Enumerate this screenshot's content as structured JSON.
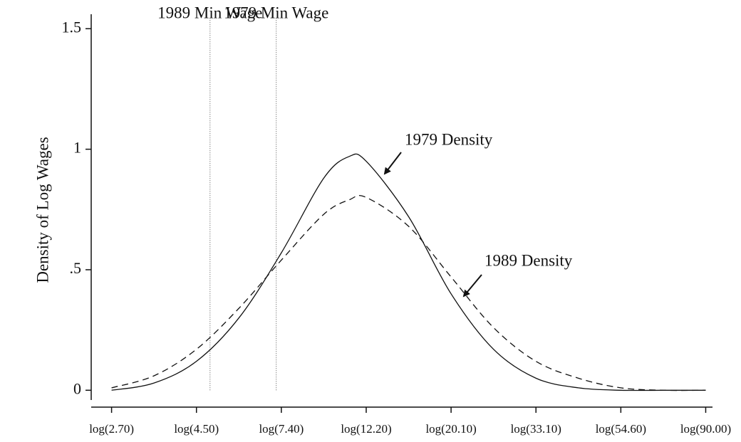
{
  "chart_data": {
    "type": "line",
    "y_label": "Density of Log Wages",
    "x": [
      1.0,
      1.25,
      1.5,
      1.75,
      2.0,
      2.25,
      2.4,
      2.5,
      2.75,
      3.0,
      3.25,
      3.5,
      3.75,
      4.0,
      4.25,
      4.5
    ],
    "series": [
      {
        "name": "1979 Density",
        "color": "#111111",
        "dash": "solid",
        "values": [
          0.0,
          0.03,
          0.12,
          0.3,
          0.57,
          0.88,
          0.97,
          0.95,
          0.72,
          0.4,
          0.17,
          0.05,
          0.01,
          0.0,
          0.0,
          0.0
        ]
      },
      {
        "name": "1989 Density",
        "color": "#111111",
        "dash": "dashed",
        "values": [
          0.01,
          0.06,
          0.17,
          0.34,
          0.54,
          0.73,
          0.79,
          0.8,
          0.68,
          0.47,
          0.26,
          0.12,
          0.05,
          0.01,
          0.0,
          0.0
        ]
      }
    ],
    "vlines": [
      {
        "label": "1989 Min Wage",
        "x": 1.58
      },
      {
        "label": "1979 Min Wage",
        "x": 1.97
      }
    ],
    "xlim": [
      0.88,
      4.54
    ],
    "ylim": [
      -0.07,
      1.56
    ],
    "xticks": [
      {
        "value": 1.0,
        "label": "log(2.70)"
      },
      {
        "value": 1.5,
        "label": "log(4.50)"
      },
      {
        "value": 2.0,
        "label": "log(7.40)"
      },
      {
        "value": 2.5,
        "label": "log(12.20)"
      },
      {
        "value": 3.0,
        "label": "log(20.10)"
      },
      {
        "value": 3.5,
        "label": "log(33.10)"
      },
      {
        "value": 4.0,
        "label": "log(54.60)"
      },
      {
        "value": 4.5,
        "label": "log(90.00)"
      }
    ],
    "yticks": [
      0,
      {
        "value": 0.5,
        "label": ".5"
      },
      1,
      1.5
    ],
    "grid": false
  }
}
